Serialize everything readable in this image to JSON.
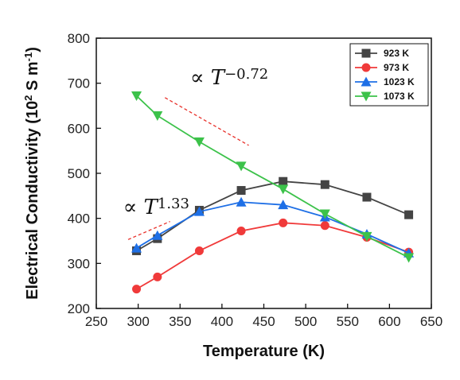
{
  "chart_data": {
    "type": "line",
    "xlabel": "Temperature (K)",
    "ylabel": "Electrical Conductivity (10",
    "ylabel_sup1": "2",
    "ylabel_mid": " S m",
    "ylabel_sup2": "-1",
    "ylabel_end": ")",
    "xlim": [
      250,
      650
    ],
    "ylim": [
      200,
      800
    ],
    "xticks": [
      250,
      300,
      350,
      400,
      450,
      500,
      550,
      600,
      650
    ],
    "yticks": [
      200,
      300,
      400,
      500,
      600,
      700,
      800
    ],
    "grid": false,
    "legend_position": "top-right",
    "series": [
      {
        "name": "923 K",
        "color": "#444444",
        "marker": "square",
        "x": [
          298,
          323,
          373,
          423,
          473,
          523,
          573,
          623
        ],
        "y": [
          328,
          355,
          418,
          462,
          482,
          475,
          447,
          408
        ]
      },
      {
        "name": "973 K",
        "color": "#f03a3a",
        "marker": "circle",
        "x": [
          298,
          323,
          373,
          423,
          473,
          523,
          573,
          623
        ],
        "y": [
          243,
          270,
          328,
          372,
          390,
          384,
          358,
          325
        ]
      },
      {
        "name": "1023 K",
        "color": "#1e6fe6",
        "marker": "triangle-up",
        "x": [
          298,
          323,
          373,
          423,
          473,
          523,
          573,
          623
        ],
        "y": [
          334,
          362,
          415,
          436,
          430,
          403,
          365,
          323
        ]
      },
      {
        "name": "1073 K",
        "color": "#3cc24a",
        "marker": "triangle-down",
        "x": [
          298,
          323,
          373,
          423,
          473,
          523,
          573,
          623
        ],
        "y": [
          672,
          628,
          570,
          516,
          465,
          410,
          360,
          313
        ]
      }
    ],
    "annotations": [
      {
        "prefix": "∝ T",
        "exponent": "1.33",
        "color": "#111111",
        "line_color": "#e8302a",
        "line": [
          [
            288,
            353
          ],
          [
            338,
            393
          ]
        ],
        "text_at": [
          282,
          410
        ]
      },
      {
        "prefix": "∝ T",
        "exponent": "−0.72",
        "color": "#111111",
        "line_color": "#e8302a",
        "line": [
          [
            332,
            668
          ],
          [
            432,
            562
          ]
        ],
        "text_at": [
          362,
          698
        ]
      }
    ]
  }
}
